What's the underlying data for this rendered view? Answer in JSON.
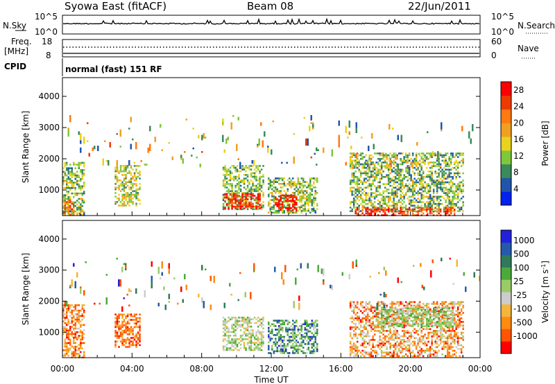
{
  "header": {
    "title": "Syowa East (fitACF)",
    "beam": "Beam 08",
    "date": "22/Jun/2011"
  },
  "panels": {
    "nsky": {
      "left_label": "N.Sky",
      "right_label": "N.Search",
      "left_ticks": [
        "10^5",
        "10^0"
      ],
      "right_ticks": [
        "10^5",
        "10^0"
      ]
    },
    "freq": {
      "label_line1": "Freq.",
      "label_line2": "[MHz]",
      "right_label": "Nave",
      "left_ticks": [
        "18",
        "8"
      ],
      "right_ticks": [
        "60",
        "0"
      ]
    },
    "cpid": {
      "label": "CPID",
      "text": "normal (fast) 151 RF"
    }
  },
  "colors": {
    "power": [
      "#0022ee",
      "#2255aa",
      "#3a8a5a",
      "#7ec83a",
      "#e8d21e",
      "#f0a020",
      "#ff7a10",
      "#ee3a00",
      "#ff0000"
    ],
    "velocity": [
      "#ff0000",
      "#ff5500",
      "#ff8a10",
      "#f3b53a",
      "#cccccc",
      "#99cc66",
      "#4aaa3a",
      "#2f7a5a",
      "#245aaa",
      "#2222dd"
    ]
  },
  "chart_data": [
    {
      "type": "heatmap",
      "name": "power",
      "ylabel": "Slant Range [km]",
      "ylim": [
        180,
        4600
      ],
      "xlim": [
        0,
        24
      ],
      "y_ticks": [
        "1000",
        "2000",
        "3000",
        "4000"
      ],
      "y_tick_values": [
        1000,
        2000,
        3000,
        4000
      ],
      "x_ticks": [],
      "colorbar": {
        "label": "Power [dB]",
        "ticks": [
          "4",
          "8",
          "12",
          "16",
          "20",
          "24",
          "28"
        ],
        "range": [
          0,
          30
        ]
      },
      "regions": [
        {
          "t0": 0.0,
          "t1": 1.2,
          "r0": 200,
          "r1": 1900,
          "v0": 6,
          "v1": 18
        },
        {
          "t0": 0.1,
          "t1": 0.6,
          "r0": 200,
          "r1": 700,
          "v0": 18,
          "v1": 27
        },
        {
          "t0": 3.0,
          "t1": 4.4,
          "r0": 500,
          "r1": 1800,
          "v0": 8,
          "v1": 20
        },
        {
          "t0": 9.2,
          "t1": 11.5,
          "r0": 400,
          "r1": 1800,
          "v0": 6,
          "v1": 16
        },
        {
          "t0": 9.3,
          "t1": 11.3,
          "r0": 400,
          "r1": 900,
          "v0": 22,
          "v1": 30
        },
        {
          "t0": 11.8,
          "t1": 14.6,
          "r0": 300,
          "r1": 1400,
          "v0": 6,
          "v1": 18
        },
        {
          "t0": 12.2,
          "t1": 13.4,
          "r0": 350,
          "r1": 850,
          "v0": 24,
          "v1": 30
        },
        {
          "t0": 16.5,
          "t1": 23.0,
          "r0": 300,
          "r1": 2200,
          "v0": 5,
          "v1": 18
        },
        {
          "t0": 16.8,
          "t1": 22.5,
          "r0": 200,
          "r1": 450,
          "v0": 20,
          "v1": 30
        },
        {
          "t0": 0.0,
          "t1": 24.0,
          "r0": 1800,
          "r1": 3400,
          "v0": 4,
          "v1": 24,
          "sparse": true
        }
      ]
    },
    {
      "type": "heatmap",
      "name": "velocity",
      "ylabel": "Slant Range [km]",
      "xlabel": "Time UT",
      "ylim": [
        180,
        4600
      ],
      "xlim": [
        0,
        24
      ],
      "y_ticks": [
        "1000",
        "2000",
        "3000",
        "4000"
      ],
      "y_tick_values": [
        1000,
        2000,
        3000,
        4000
      ],
      "x_ticks": [
        "00:00",
        "04:00",
        "08:00",
        "12:00",
        "16:00",
        "20:00",
        "00:00"
      ],
      "colorbar": {
        "label": "Velocity [m s",
        "label_sup": "-1",
        "label_end": "]",
        "ticks": [
          "1000",
          "500",
          "100",
          "25",
          "-25",
          "-100",
          "-500",
          "-1000"
        ]
      },
      "regions": [
        {
          "t0": 0.0,
          "t1": 1.2,
          "r0": 200,
          "r1": 1900,
          "c0": 0,
          "c1": 4
        },
        {
          "t0": 3.0,
          "t1": 4.4,
          "r0": 500,
          "r1": 1600,
          "c0": 0,
          "c1": 3
        },
        {
          "t0": 9.2,
          "t1": 11.5,
          "r0": 400,
          "r1": 1500,
          "c0": 3,
          "c1": 6
        },
        {
          "t0": 11.8,
          "t1": 14.6,
          "r0": 300,
          "r1": 1400,
          "c0": 4,
          "c1": 9
        },
        {
          "t0": 16.5,
          "t1": 23.0,
          "r0": 250,
          "r1": 2000,
          "c0": 0,
          "c1": 5
        },
        {
          "t0": 18.0,
          "t1": 22.5,
          "r0": 1200,
          "r1": 1800,
          "c0": 4,
          "c1": 6
        },
        {
          "t0": 0.0,
          "t1": 24.0,
          "r0": 1800,
          "r1": 3400,
          "c0": 0,
          "c1": 9,
          "sparse": true
        }
      ]
    }
  ]
}
